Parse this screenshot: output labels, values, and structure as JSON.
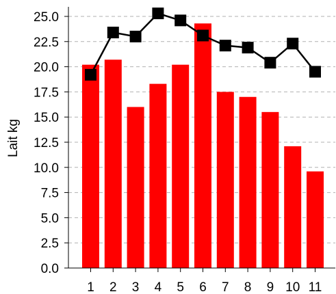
{
  "chart_data": {
    "type": "bar",
    "title": "",
    "xlabel": "",
    "ylabel": "Lait kg",
    "categories": [
      "1",
      "2",
      "3",
      "4",
      "5",
      "6",
      "7",
      "8",
      "9",
      "10",
      "11"
    ],
    "series": [
      {
        "type": "bar",
        "color": "#ff0000",
        "values": [
          20.2,
          20.7,
          16.0,
          18.3,
          20.2,
          24.3,
          17.5,
          17.0,
          15.5,
          12.1,
          9.6
        ]
      },
      {
        "type": "line",
        "marker": "square",
        "color": "#000000",
        "values": [
          19.2,
          23.4,
          23.0,
          25.3,
          24.6,
          23.1,
          22.1,
          21.9,
          20.4,
          22.3,
          19.5
        ]
      }
    ],
    "ylim": [
      0,
      26
    ],
    "yticks": [
      "0.0",
      "2.5",
      "5.0",
      "7.5",
      "10.0",
      "12.5",
      "15.0",
      "17.5",
      "20.0",
      "22.5",
      "25.0"
    ],
    "grid": "horizontal-dashed"
  }
}
